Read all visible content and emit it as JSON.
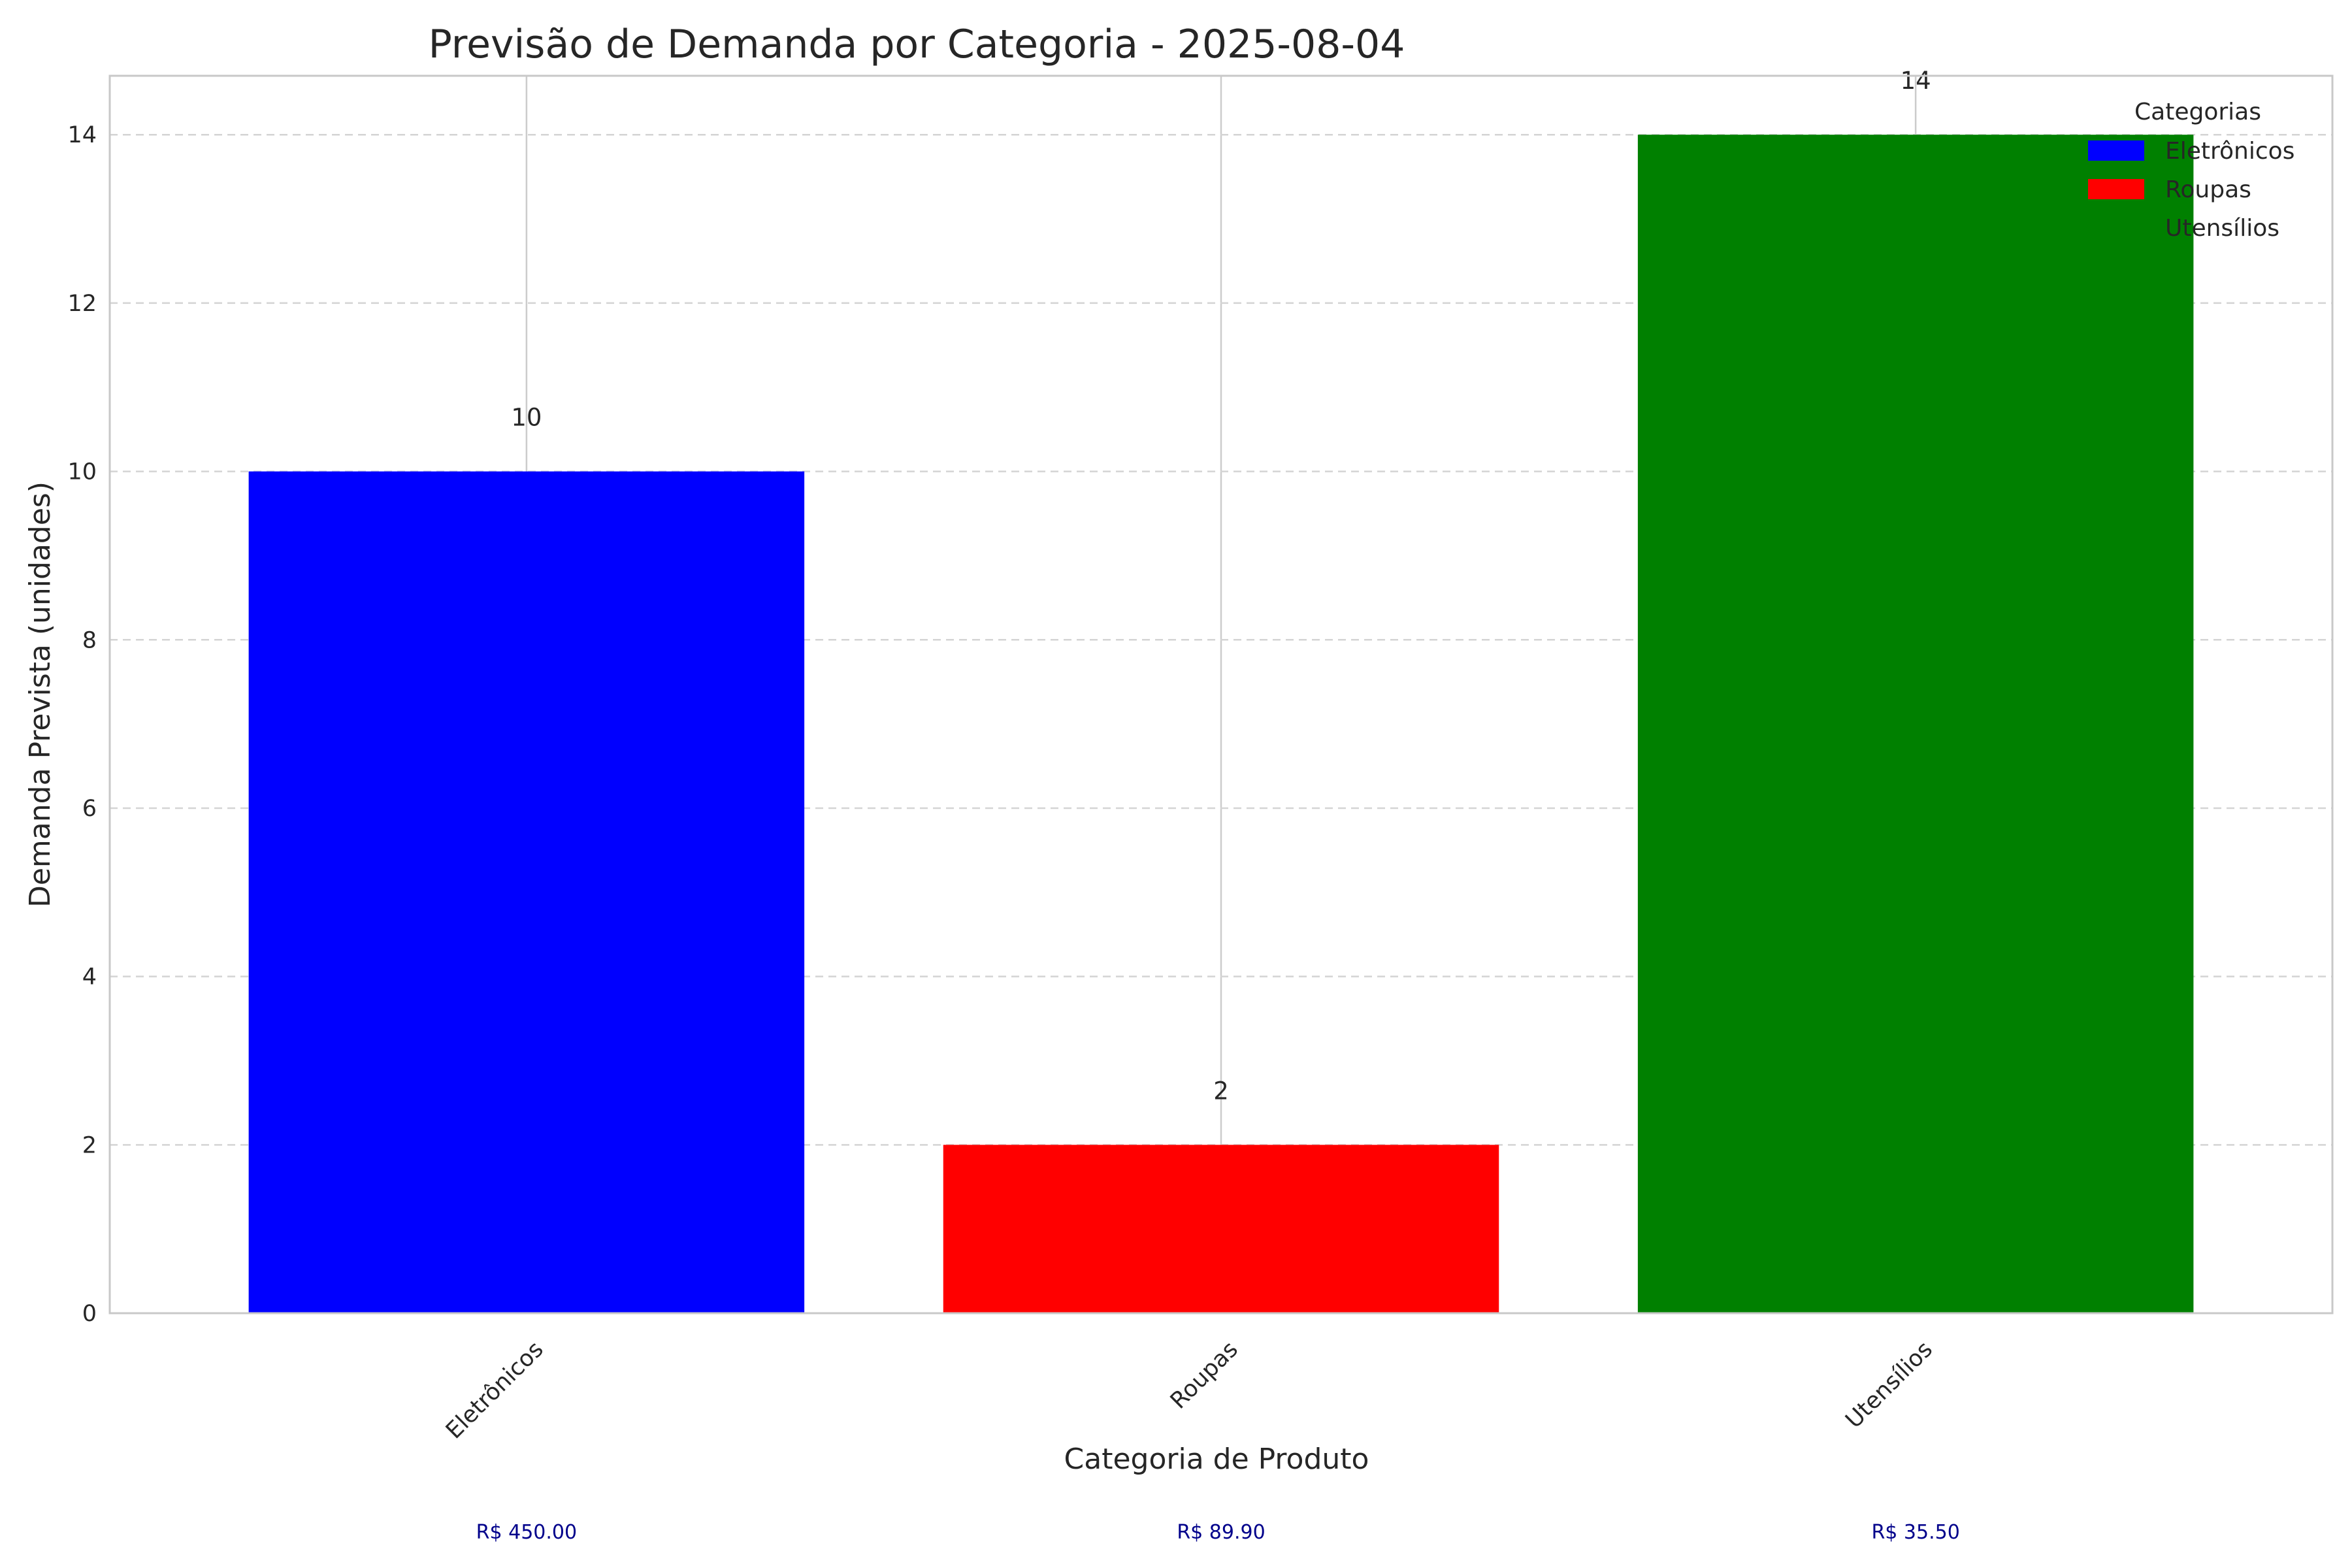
{
  "chart_data": {
    "type": "bar",
    "title": "Previsão de Demanda por Categoria - 2025-08-04",
    "xlabel": "Categoria de Produto",
    "ylabel": "Demanda Prevista (unidades)",
    "categories": [
      "Eletrônicos",
      "Roupas",
      "Utensílios"
    ],
    "values": [
      10,
      2,
      14
    ],
    "value_labels": [
      "10",
      "2",
      "14"
    ],
    "bar_colors": [
      "#0000ff",
      "#ff0000",
      "#008000"
    ],
    "prices": [
      "R$ 450.00",
      "R$ 89.90",
      "R$ 35.50"
    ],
    "price_color": "#00008b",
    "ylim": [
      0,
      14.7
    ],
    "yticks": [
      0,
      2,
      4,
      6,
      8,
      10,
      12,
      14
    ],
    "grid": true,
    "legend": {
      "title": "Categorias",
      "position": "top-right",
      "entries": [
        {
          "label": "Eletrônicos",
          "color": "#0000ff"
        },
        {
          "label": "Roupas",
          "color": "#ff0000"
        },
        {
          "label": "Utensílios",
          "color": null
        }
      ]
    }
  }
}
